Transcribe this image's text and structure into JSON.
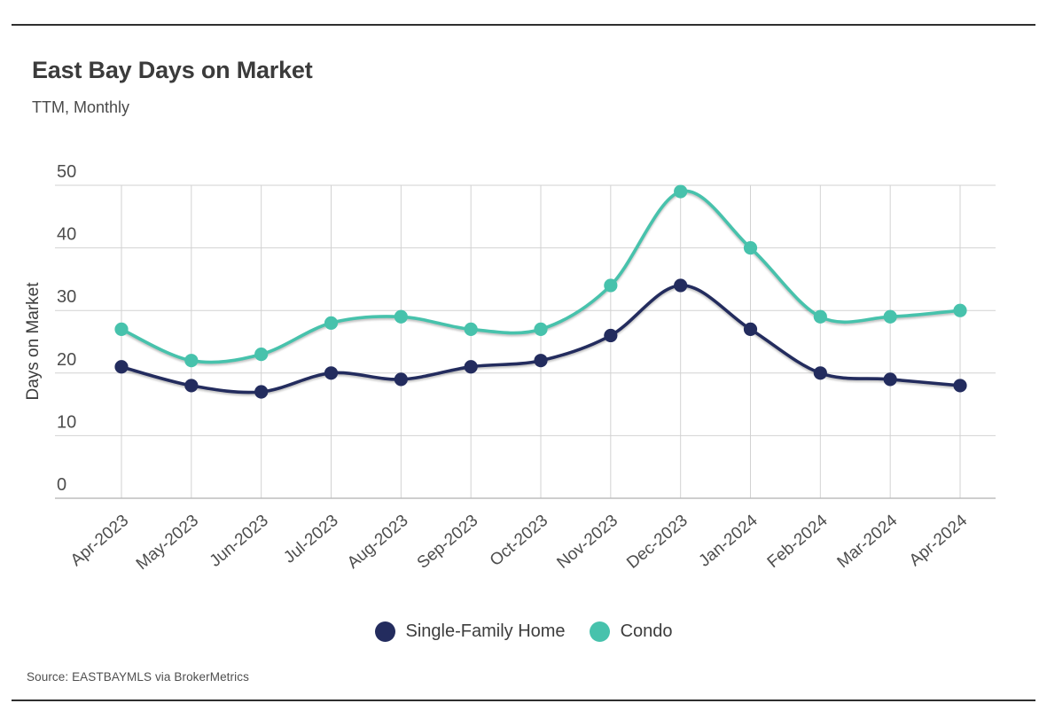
{
  "header": {
    "title": "East Bay Days on Market",
    "subtitle": "TTM, Monthly"
  },
  "chart_data": {
    "type": "line",
    "title": "East Bay Days on Market",
    "subtitle": "TTM, Monthly",
    "categories": [
      "Apr-2023",
      "May-2023",
      "Jun-2023",
      "Jul-2023",
      "Aug-2023",
      "Sep-2023",
      "Oct-2023",
      "Nov-2023",
      "Dec-2023",
      "Jan-2024",
      "Feb-2024",
      "Mar-2024",
      "Apr-2024"
    ],
    "series": [
      {
        "name": "Single-Family Home",
        "color": "#232c5e",
        "values": [
          21,
          18,
          17,
          20,
          19,
          21,
          22,
          26,
          34,
          27,
          20,
          19,
          18
        ]
      },
      {
        "name": "Condo",
        "color": "#47c2ac",
        "values": [
          27,
          22,
          23,
          28,
          29,
          27,
          27,
          34,
          49,
          40,
          29,
          29,
          30
        ]
      }
    ],
    "xlabel": "",
    "ylabel": "Days on Market",
    "ylim": [
      0,
      50
    ],
    "yticks": [
      0,
      10,
      20,
      30,
      40,
      50
    ],
    "grid": true,
    "legend_position": "bottom"
  },
  "footer": {
    "source": "Source:  EASTBAYMLS via BrokerMetrics"
  }
}
